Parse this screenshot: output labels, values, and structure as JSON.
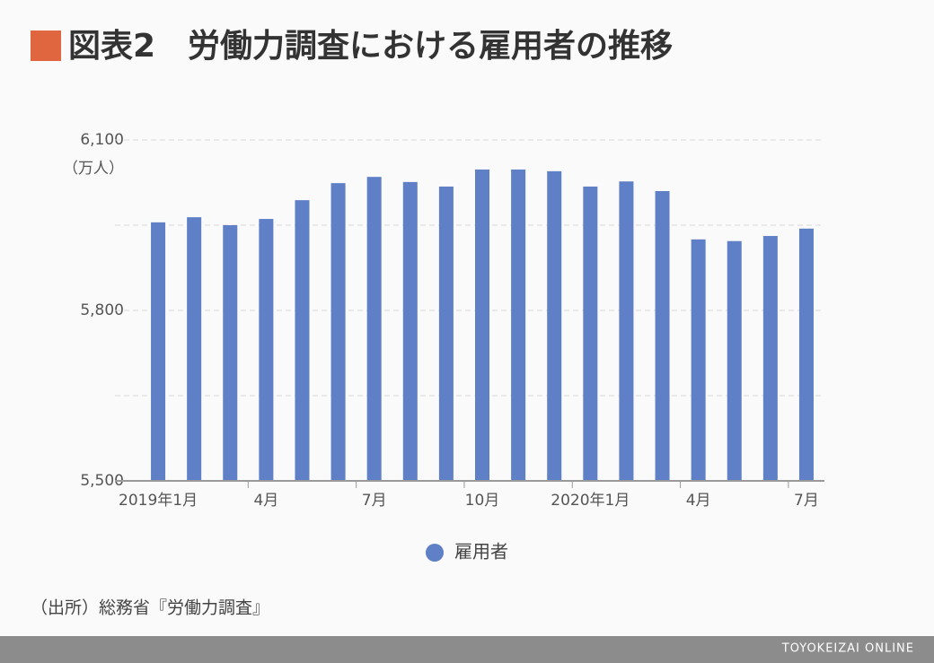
{
  "chart_data": {
    "type": "bar",
    "title": "図表2　労働力調査における雇用者の推移",
    "y_unit": "（万人）",
    "categories": [
      "2019年1月",
      null,
      null,
      "4月",
      null,
      null,
      "7月",
      null,
      null,
      "10月",
      null,
      null,
      "2020年1月",
      null,
      null,
      "4月",
      null,
      null,
      "7月"
    ],
    "series": [
      {
        "name": "雇用者",
        "color": "#5f7fc6",
        "values": [
          5955,
          5964,
          5950,
          5961,
          5994,
          6024,
          6035,
          6026,
          6018,
          6048,
          6048,
          6045,
          6018,
          6027,
          6010,
          5925,
          5922,
          5931,
          5944
        ]
      }
    ],
    "ylim": [
      5500,
      6100
    ],
    "yticks": [
      {
        "value": 5500,
        "label": "5,500"
      },
      {
        "value": 5800,
        "label": "5,800"
      },
      {
        "value": 6100,
        "label": "6,100"
      }
    ],
    "minor_yticks": [
      5650,
      5950
    ],
    "grid": true,
    "source": "（出所）総務省『労働力調査』"
  },
  "footer": "TOYOKEIZAI ONLINE"
}
